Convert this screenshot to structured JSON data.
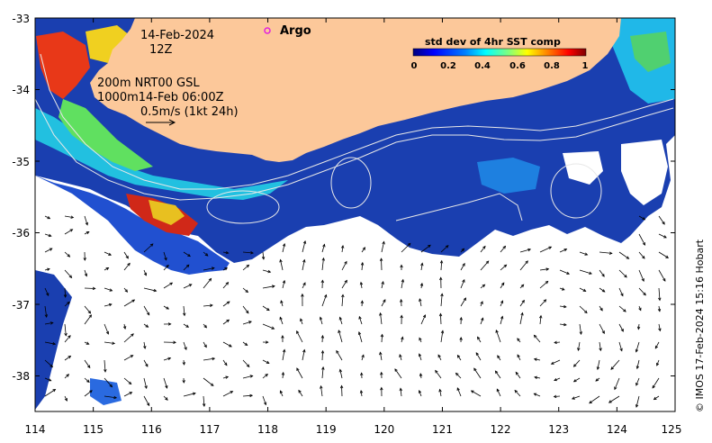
{
  "map": {
    "date": "14-Feb-2024",
    "time": "12Z",
    "argo_label": "Argo",
    "contour_line1": "200m  NRT00 GSL",
    "contour_line2": "1000m14-Feb 06:00Z",
    "vector_scale": "0.5m/s (1kt 24h)",
    "credit": "© IMOS 17-Feb-2024 15:16 Hobart",
    "lon_ticks": [
      "114",
      "115",
      "116",
      "117",
      "118",
      "119",
      "120",
      "121",
      "122",
      "123",
      "124",
      "125"
    ],
    "lat_ticks": [
      "-33",
      "-34",
      "-35",
      "-36",
      "-37",
      "-38"
    ],
    "lon_range": [
      114,
      125
    ],
    "lat_range": [
      -38.5,
      -33
    ],
    "colors": {
      "land": "#fcc89a",
      "argo": "#e020e0",
      "contour": "#e8e8e8"
    }
  },
  "colorbar": {
    "title": "std dev of 4hr SST comp",
    "ticks": [
      "0",
      "0.2",
      "0.4",
      "0.6",
      "0.8",
      "1"
    ],
    "colors": [
      "#00007f",
      "#0000ff",
      "#007fff",
      "#00ffff",
      "#7fff7f",
      "#ffff00",
      "#ff7f00",
      "#ff0000",
      "#7f0000"
    ]
  }
}
